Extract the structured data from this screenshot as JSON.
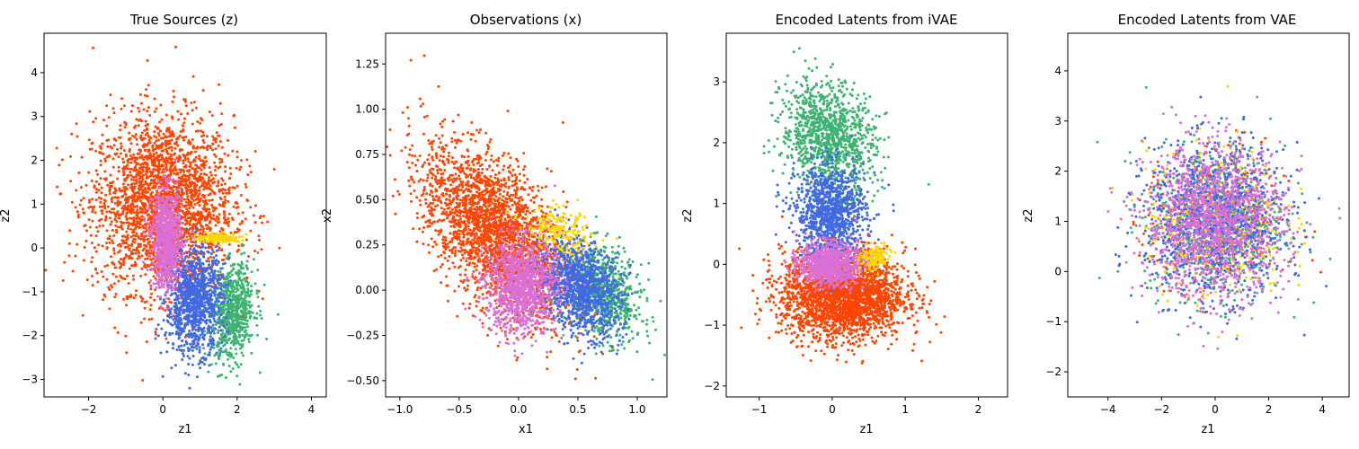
{
  "colors": {
    "orangered": "#ff4500",
    "royalblue": "#4169e1",
    "mediumseagreen": "#3cb371",
    "gold": "#ffd700",
    "orchid": "#da70d6"
  },
  "chart_data": [
    {
      "type": "scatter",
      "title": "True Sources (z)",
      "xlabel": "z1",
      "ylabel": "z2",
      "xlim": [
        -3.2,
        4.4
      ],
      "ylim": [
        -3.4,
        4.9
      ],
      "xticks": [
        -2,
        0,
        2,
        4
      ],
      "yticks": [
        -3,
        -2,
        -1,
        0,
        1,
        2,
        3,
        4
      ],
      "series": [
        {
          "color": "#ff4500",
          "center": [
            0.0,
            1.0
          ],
          "spread": [
            0.95,
            1.0
          ],
          "corr": 0.0,
          "count": 2600
        },
        {
          "color": "#3cb371",
          "center": [
            1.9,
            -1.5
          ],
          "spread": [
            0.28,
            0.55
          ],
          "corr": 0.2,
          "count": 700
        },
        {
          "color": "#4169e1",
          "center": [
            0.85,
            -1.2
          ],
          "spread": [
            0.38,
            0.6
          ],
          "corr": 0.1,
          "count": 1100
        },
        {
          "color": "#ffd700",
          "center": [
            1.5,
            0.22
          ],
          "spread": [
            0.3,
            0.05
          ],
          "corr": 0.0,
          "count": 150
        },
        {
          "color": "#da70d6",
          "center": [
            0.1,
            0.2
          ],
          "spread": [
            0.2,
            0.55
          ],
          "corr": 0.0,
          "count": 900
        }
      ]
    },
    {
      "type": "scatter",
      "title": "Observations (x)",
      "xlabel": "x1",
      "ylabel": "x2",
      "xlim": [
        -1.12,
        1.25
      ],
      "ylim": [
        -0.59,
        1.42
      ],
      "xticks": [
        -1.0,
        -0.5,
        0.0,
        0.5,
        1.0
      ],
      "ytick_labels": [
        "−0.50",
        "−0.25",
        "0.00",
        "0.25",
        "0.50",
        "0.75",
        "1.00",
        "1.25"
      ],
      "yticks": [
        -0.5,
        -0.25,
        0.0,
        0.25,
        0.5,
        0.75,
        1.0,
        1.25
      ],
      "series": [
        {
          "color": "#ff4500",
          "center": [
            -0.2,
            0.32
          ],
          "spread": [
            0.3,
            0.24
          ],
          "corr": -0.55,
          "count": 2600
        },
        {
          "color": "#3cb371",
          "center": [
            0.72,
            -0.02
          ],
          "spread": [
            0.16,
            0.13
          ],
          "corr": -0.3,
          "count": 700
        },
        {
          "color": "#4169e1",
          "center": [
            0.52,
            0.02
          ],
          "spread": [
            0.17,
            0.13
          ],
          "corr": -0.3,
          "count": 1100
        },
        {
          "color": "#ffd700",
          "center": [
            0.33,
            0.33
          ],
          "spread": [
            0.14,
            0.06
          ],
          "corr": -0.3,
          "count": 200
        },
        {
          "color": "#da70d6",
          "center": [
            0.02,
            0.02
          ],
          "spread": [
            0.15,
            0.13
          ],
          "corr": 0.0,
          "count": 1100
        }
      ]
    },
    {
      "type": "scatter",
      "title": "Encoded Latents from iVAE",
      "xlabel": "z1",
      "ylabel": "z2",
      "xlim": [
        -1.45,
        2.4
      ],
      "ylim": [
        -2.18,
        3.8
      ],
      "xticks": [
        -1,
        0,
        1,
        2
      ],
      "yticks": [
        -2,
        -1,
        0,
        1,
        2,
        3
      ],
      "series": [
        {
          "color": "#ff4500",
          "center": [
            0.15,
            -0.5
          ],
          "spread": [
            0.42,
            0.36
          ],
          "corr": 0.0,
          "count": 2600
        },
        {
          "color": "#3cb371",
          "center": [
            -0.05,
            2.1
          ],
          "spread": [
            0.32,
            0.45
          ],
          "corr": -0.2,
          "count": 1100
        },
        {
          "color": "#4169e1",
          "center": [
            -0.02,
            0.85
          ],
          "spread": [
            0.24,
            0.38
          ],
          "corr": 0.0,
          "count": 1100
        },
        {
          "color": "#ffd700",
          "center": [
            0.55,
            0.1
          ],
          "spread": [
            0.12,
            0.12
          ],
          "corr": 0.3,
          "count": 150
        },
        {
          "color": "#da70d6",
          "center": [
            -0.05,
            0.0
          ],
          "spread": [
            0.2,
            0.17
          ],
          "corr": 0.0,
          "count": 900
        }
      ]
    },
    {
      "type": "scatter",
      "title": "Encoded Latents from VAE",
      "xlabel": "z1",
      "ylabel": "z2",
      "xlim": [
        -5.5,
        5.0
      ],
      "ylim": [
        -2.5,
        4.75
      ],
      "xticks": [
        -4,
        -2,
        0,
        2,
        4
      ],
      "yticks": [
        -2,
        -1,
        0,
        1,
        2,
        3,
        4
      ],
      "series": [
        {
          "color": "#ff4500",
          "center": [
            0.0,
            1.0
          ],
          "spread": [
            1.3,
            0.75
          ],
          "corr": 0.0,
          "count": 250
        },
        {
          "color": "#3cb371",
          "center": [
            0.0,
            1.0
          ],
          "spread": [
            1.3,
            0.75
          ],
          "corr": 0.0,
          "count": 700
        },
        {
          "color": "#ffd700",
          "center": [
            0.0,
            1.0
          ],
          "spread": [
            1.3,
            0.75
          ],
          "corr": 0.0,
          "count": 400
        },
        {
          "color": "#4169e1",
          "center": [
            0.0,
            1.0
          ],
          "spread": [
            1.3,
            0.75
          ],
          "corr": 0.0,
          "count": 1100
        },
        {
          "color": "#da70d6",
          "center": [
            0.0,
            1.0
          ],
          "spread": [
            1.3,
            0.75
          ],
          "corr": 0.0,
          "count": 1400
        }
      ]
    }
  ]
}
